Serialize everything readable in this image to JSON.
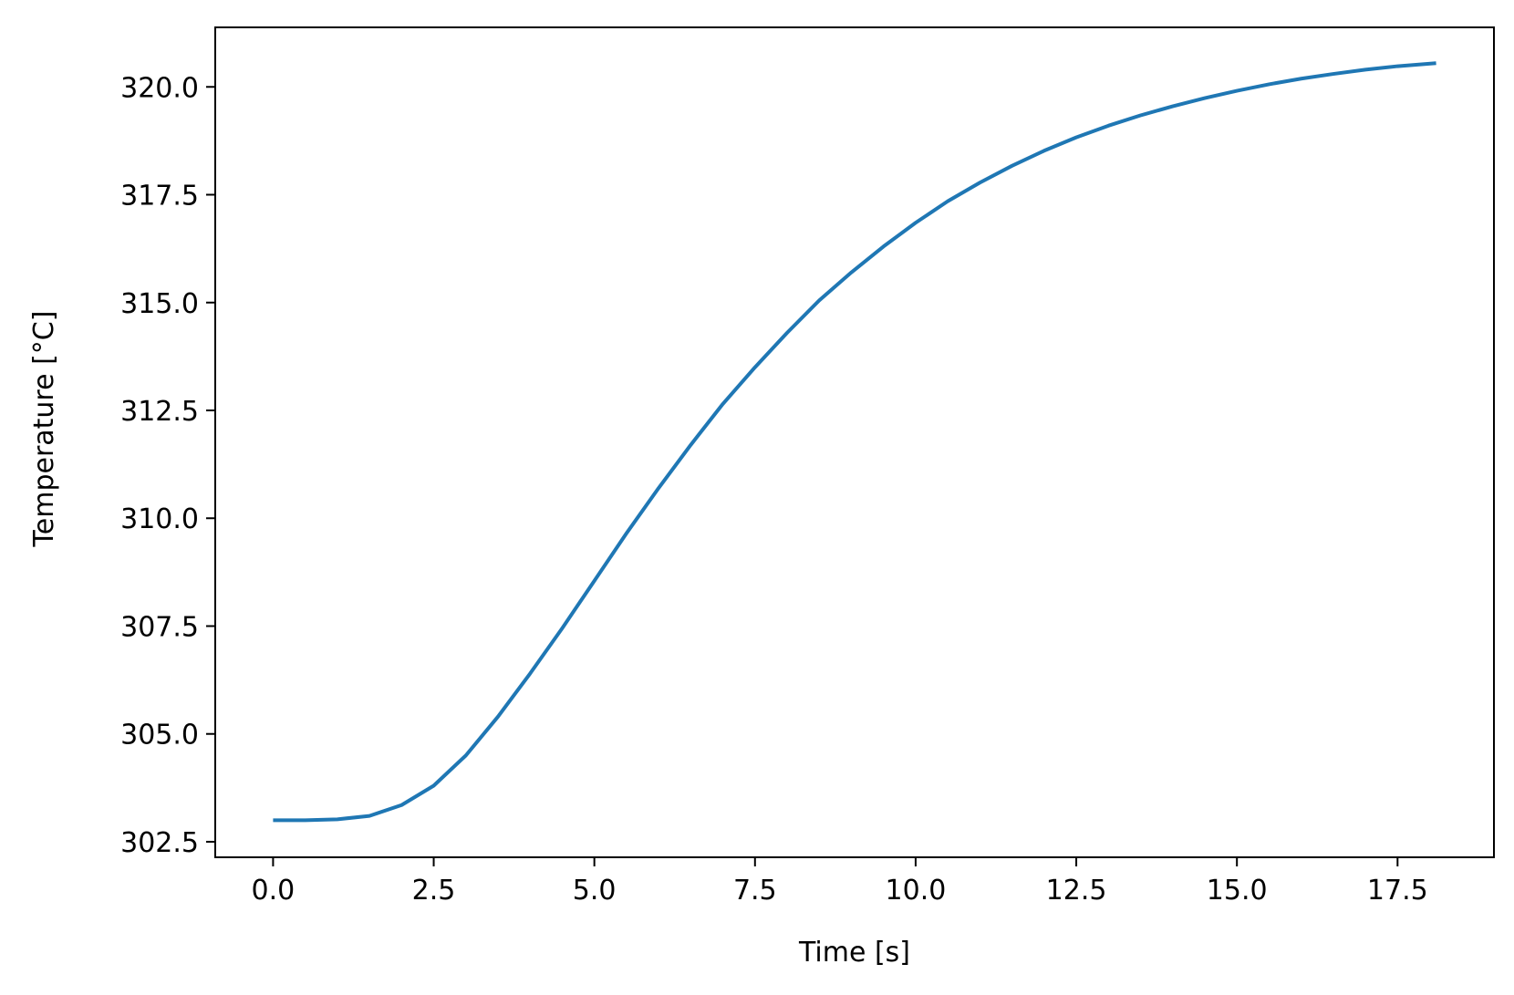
{
  "chart_data": {
    "type": "line",
    "title": "",
    "xlabel": "Time [s]",
    "ylabel": "Temperature [°C]",
    "xlim": [
      -0.9,
      19.0
    ],
    "ylim": [
      302.14,
      321.38
    ],
    "xticks": [
      0.0,
      2.5,
      5.0,
      7.5,
      10.0,
      12.5,
      15.0,
      17.5
    ],
    "xtick_labels": [
      "0.0",
      "2.5",
      "5.0",
      "7.5",
      "10.0",
      "12.5",
      "15.0",
      "17.5"
    ],
    "yticks": [
      302.5,
      305.0,
      307.5,
      310.0,
      312.5,
      315.0,
      317.5,
      320.0
    ],
    "ytick_labels": [
      "302.5",
      "305.0",
      "307.5",
      "310.0",
      "312.5",
      "315.0",
      "317.5",
      "320.0"
    ],
    "grid": false,
    "line_color": "#1f77b4",
    "series": [
      {
        "x": [
          0.0,
          0.5,
          1.0,
          1.5,
          2.0,
          2.5,
          3.0,
          3.5,
          4.0,
          4.5,
          5.0,
          5.5,
          6.0,
          6.5,
          7.0,
          7.5,
          8.0,
          8.5,
          9.0,
          9.5,
          10.0,
          10.5,
          11.0,
          11.5,
          12.0,
          12.5,
          13.0,
          13.5,
          14.0,
          14.5,
          15.0,
          15.5,
          16.0,
          16.5,
          17.0,
          17.5,
          18.1
        ],
        "y": [
          303.0,
          303.0,
          303.02,
          303.1,
          303.35,
          303.8,
          304.5,
          305.4,
          306.4,
          307.45,
          308.55,
          309.65,
          310.7,
          311.7,
          312.65,
          313.5,
          314.3,
          315.05,
          315.7,
          316.3,
          316.85,
          317.35,
          317.78,
          318.17,
          318.52,
          318.83,
          319.1,
          319.34,
          319.55,
          319.74,
          319.91,
          320.06,
          320.19,
          320.3,
          320.4,
          320.48,
          320.55
        ]
      }
    ]
  }
}
